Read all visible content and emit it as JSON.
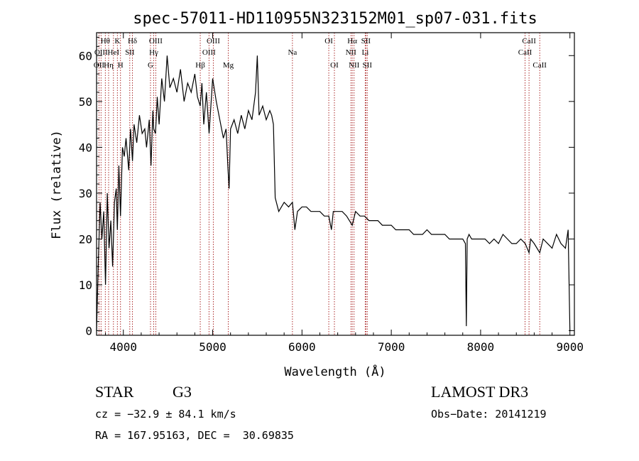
{
  "chart_data": {
    "type": "line",
    "title": "spec-57011-HD110955N323152M01_sp07-031.fits",
    "xlabel": "Wavelength (Å)",
    "ylabel": "Flux (relative)",
    "xlim": [
      3700,
      9050
    ],
    "ylim": [
      -1,
      65
    ],
    "xticks": [
      4000,
      5000,
      6000,
      7000,
      8000,
      9000
    ],
    "yticks": [
      0,
      10,
      20,
      30,
      40,
      50,
      60
    ],
    "grid": false,
    "series": [
      {
        "x": [
          3700,
          3720,
          3740,
          3760,
          3780,
          3800,
          3820,
          3840,
          3860,
          3880,
          3900,
          3920,
          3933,
          3950,
          3968,
          3990,
          4010,
          4030,
          4060,
          4080,
          4102,
          4120,
          4150,
          4180,
          4210,
          4240,
          4260,
          4290,
          4310,
          4330,
          4340,
          4360,
          4380,
          4400,
          4430,
          4460,
          4490,
          4520,
          4560,
          4600,
          4640,
          4680,
          4720,
          4760,
          4800,
          4830,
          4861,
          4880,
          4900,
          4930,
          4960,
          5000,
          5040,
          5080,
          5120,
          5150,
          5172,
          5184,
          5200,
          5240,
          5280,
          5320,
          5360,
          5400,
          5440,
          5480,
          5500,
          5520,
          5560,
          5600,
          5640,
          5660,
          5680,
          5700,
          5740,
          5800,
          5850,
          5893,
          5920,
          5950,
          6000,
          6050,
          6100,
          6150,
          6200,
          6250,
          6300,
          6330,
          6350,
          6400,
          6450,
          6500,
          6563,
          6600,
          6650,
          6700,
          6750,
          6800,
          6850,
          6900,
          6950,
          7000,
          7050,
          7100,
          7150,
          7200,
          7250,
          7300,
          7350,
          7400,
          7450,
          7500,
          7550,
          7600,
          7650,
          7700,
          7750,
          7800,
          7830,
          7840,
          7850,
          7870,
          7900,
          7950,
          8000,
          8050,
          8100,
          8150,
          8200,
          8250,
          8300,
          8350,
          8400,
          8450,
          8500,
          8542,
          8560,
          8600,
          8662,
          8700,
          8750,
          8800,
          8850,
          8900,
          8950,
          8980,
          9000
        ],
        "y": [
          0,
          15,
          28,
          20,
          26,
          10,
          30,
          18,
          24,
          14,
          28,
          31,
          22,
          36,
          25,
          40,
          38,
          42,
          35,
          44,
          37,
          45,
          41,
          47,
          43,
          44,
          40,
          46,
          36,
          48,
          44,
          43,
          51,
          45,
          55,
          50,
          60,
          53,
          55,
          52,
          57,
          50,
          54,
          52,
          56,
          51,
          49,
          54,
          45,
          52,
          43,
          55,
          50,
          46,
          42,
          44,
          35,
          31,
          44,
          46,
          43,
          47,
          44,
          48,
          46,
          52,
          60,
          47,
          49,
          46,
          48,
          47,
          45,
          29,
          26,
          28,
          27,
          28,
          22,
          26,
          27,
          27,
          26,
          26,
          26,
          25,
          25,
          22,
          26,
          26,
          26,
          25,
          23,
          26,
          25,
          25,
          24,
          24,
          24,
          23,
          23,
          23,
          22,
          22,
          22,
          22,
          21,
          21,
          21,
          22,
          21,
          21,
          21,
          21,
          20,
          20,
          20,
          20,
          19,
          1,
          20,
          21,
          20,
          20,
          20,
          20,
          19,
          20,
          19,
          21,
          20,
          19,
          19,
          20,
          19,
          17,
          20,
          19,
          17,
          20,
          19,
          18,
          21,
          19,
          18,
          22,
          0
        ]
      }
    ],
    "line_markers": [
      {
        "wave": 3727,
        "label": "OII",
        "row": 3
      },
      {
        "wave": 3750,
        "label": "OIII",
        "row": 2
      },
      {
        "wave": 3798,
        "label": "Hθ",
        "row": 1
      },
      {
        "wave": 3835,
        "label": "Hη",
        "row": 3
      },
      {
        "wave": 3889,
        "label": "HeI",
        "row": 2
      },
      {
        "wave": 3933,
        "label": "K",
        "row": 1
      },
      {
        "wave": 3968,
        "label": "H",
        "row": 3
      },
      {
        "wave": 4072,
        "label": "SII",
        "row": 2
      },
      {
        "wave": 4102,
        "label": "Hδ",
        "row": 1
      },
      {
        "wave": 4304,
        "label": "G",
        "row": 3
      },
      {
        "wave": 4340,
        "label": "Hγ",
        "row": 2
      },
      {
        "wave": 4363,
        "label": "OIII",
        "row": 1
      },
      {
        "wave": 4861,
        "label": "Hβ",
        "row": 3
      },
      {
        "wave": 4959,
        "label": "OIII",
        "row": 2
      },
      {
        "wave": 5007,
        "label": "OIII",
        "row": 1
      },
      {
        "wave": 5175,
        "label": "Mg",
        "row": 3
      },
      {
        "wave": 5893,
        "label": "Na",
        "row": 2
      },
      {
        "wave": 6300,
        "label": "OI",
        "row": 1
      },
      {
        "wave": 6363,
        "label": "OI",
        "row": 3
      },
      {
        "wave": 6548,
        "label": "NII",
        "row": 2
      },
      {
        "wave": 6563,
        "label": "Hα",
        "row": 1
      },
      {
        "wave": 6583,
        "label": "NII",
        "row": 3
      },
      {
        "wave": 6708,
        "label": "Li",
        "row": 2
      },
      {
        "wave": 6716,
        "label": "SII",
        "row": 1
      },
      {
        "wave": 6731,
        "label": "SII",
        "row": 3
      },
      {
        "wave": 8498,
        "label": "CaII",
        "row": 2
      },
      {
        "wave": 8542,
        "label": "CaII",
        "row": 1
      },
      {
        "wave": 8662,
        "label": "CaII",
        "row": 3
      }
    ]
  },
  "info": {
    "class_label": "STAR",
    "subclass": "G3",
    "survey": "LAMOST DR3",
    "redshift_line": "cz = −32.9 ± 84.1 km/s",
    "obs_date_line": "Obs−Date: 20141219",
    "coords_line": "RA = 167.95163, DEC =  30.69835"
  }
}
